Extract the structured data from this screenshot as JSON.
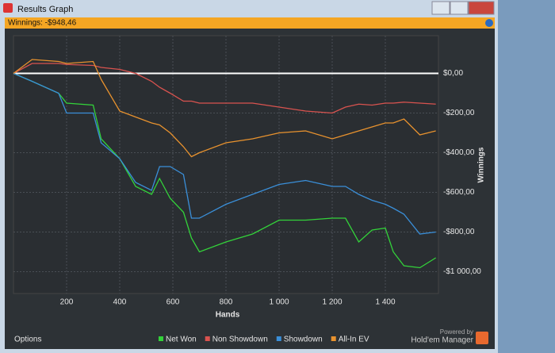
{
  "window": {
    "title": "Results Graph",
    "winnings": "Winnings: -$948,46",
    "options": "Options",
    "powered_by": "Powered by",
    "brand": "Hold'em Manager"
  },
  "chart_data": {
    "type": "line",
    "x_label": "Hands",
    "y_label": "Winnings",
    "x": [
      0,
      70,
      170,
      200,
      300,
      330,
      400,
      460,
      520,
      550,
      590,
      640,
      670,
      700,
      800,
      900,
      1000,
      1100,
      1200,
      1250,
      1300,
      1350,
      1400,
      1430,
      1470,
      1530,
      1590
    ],
    "series": [
      {
        "name": "Net Won",
        "color": "#33d23a",
        "values": [
          0,
          -40,
          -100,
          -150,
          -160,
          -330,
          -430,
          -570,
          -610,
          -530,
          -630,
          -700,
          -830,
          -900,
          -850,
          -810,
          -740,
          -740,
          -730,
          -730,
          -850,
          -790,
          -780,
          -900,
          -970,
          -980,
          -930
        ]
      },
      {
        "name": "Non Showdown",
        "color": "#d9534f",
        "values": [
          0,
          50,
          50,
          45,
          40,
          30,
          20,
          0,
          -40,
          -70,
          -100,
          -140,
          -140,
          -150,
          -150,
          -150,
          -170,
          -190,
          -200,
          -170,
          -155,
          -160,
          -150,
          -150,
          -145,
          -150,
          -155
        ]
      },
      {
        "name": "Showdown",
        "color": "#3a8fd9",
        "values": [
          0,
          -40,
          -100,
          -200,
          -200,
          -350,
          -430,
          -550,
          -590,
          -470,
          -470,
          -510,
          -730,
          -730,
          -660,
          -610,
          -560,
          -540,
          -570,
          -570,
          -610,
          -640,
          -660,
          -680,
          -710,
          -810,
          -800
        ]
      },
      {
        "name": "All-In EV",
        "color": "#e8922e",
        "values": [
          0,
          70,
          60,
          50,
          60,
          -30,
          -190,
          -220,
          -250,
          -260,
          -300,
          -370,
          -420,
          -400,
          -350,
          -330,
          -300,
          -290,
          -330,
          -310,
          -290,
          -270,
          -250,
          -250,
          -230,
          -310,
          -290
        ]
      }
    ],
    "xlim": [
      0,
      1600
    ],
    "ylim": [
      -1110,
      190
    ],
    "xticks": [
      200,
      400,
      600,
      800,
      {
        "value": 1000,
        "label": "1 000"
      },
      {
        "value": 1200,
        "label": "1 200"
      },
      {
        "value": 1400,
        "label": "1 400"
      }
    ],
    "yticks": [
      {
        "value": 0,
        "label": "$0,00"
      },
      {
        "value": -200,
        "label": "-$200,00"
      },
      {
        "value": -400,
        "label": "-$400,00"
      },
      {
        "value": -600,
        "label": "-$600,00"
      },
      {
        "value": -800,
        "label": "-$800,00"
      },
      {
        "value": -1000,
        "label": "-$1 000,00"
      }
    ],
    "grid": true
  }
}
